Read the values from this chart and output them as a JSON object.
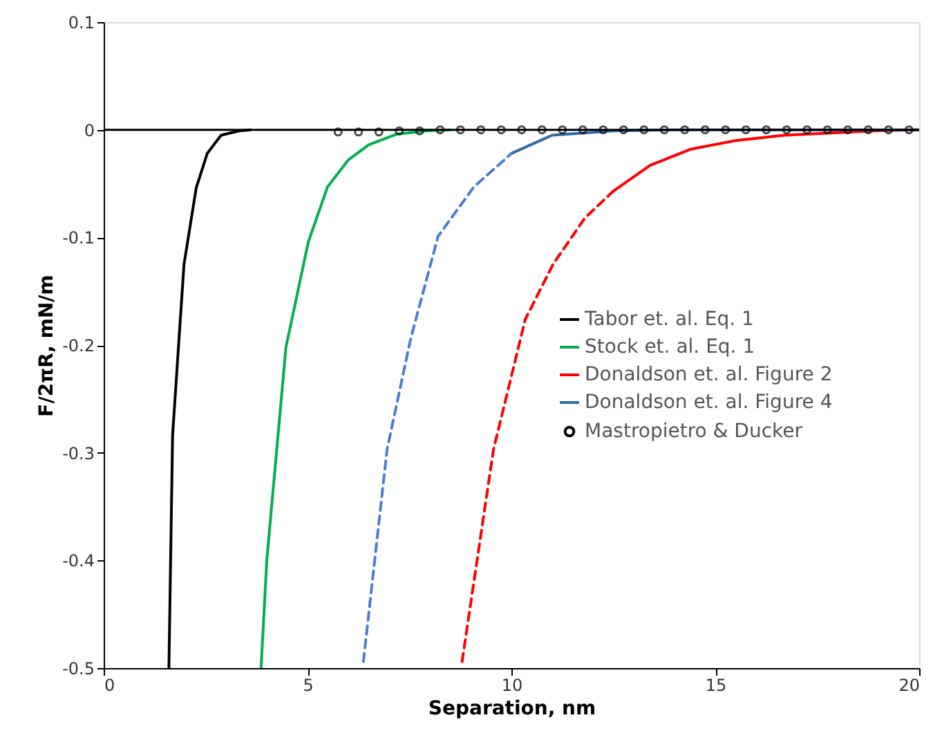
{
  "chart_data": {
    "type": "line",
    "xlabel": "Separation, nm",
    "ylabel": "F/2πR, mN/m",
    "xlim": [
      0,
      20
    ],
    "xticks": [
      0,
      5,
      10,
      15,
      20
    ],
    "ylim": [
      -0.5,
      0.1
    ],
    "yticks": [
      0.1,
      0,
      -0.1,
      -0.2,
      -0.3,
      -0.4,
      -0.5
    ],
    "grid": false,
    "legend": "right",
    "ref_lines": [
      {
        "axis": "y",
        "value": 0,
        "color": "#000000"
      }
    ],
    "series": [
      {
        "name": "Tabor et. al. Eq. 1",
        "color": "#000000",
        "line_style": "solid",
        "x": [
          1.6,
          1.69,
          1.97,
          2.27,
          2.54,
          2.88,
          3.32,
          3.6
        ],
        "values": [
          -0.5,
          -0.284,
          -0.125,
          -0.054,
          -0.022,
          -0.005,
          -0.001,
          0
        ]
      },
      {
        "name": "Stock et. al. Eq. 1",
        "color": "#00b050",
        "line_style": "solid",
        "x": [
          3.86,
          4.0,
          4.47,
          5.02,
          5.49,
          6.0,
          6.5,
          7.19,
          7.9,
          8.5
        ],
        "values": [
          -0.5,
          -0.4,
          -0.202,
          -0.104,
          -0.053,
          -0.028,
          -0.014,
          -0.004,
          -0.001,
          0
        ]
      },
      {
        "name": "Donaldson et. al. Figure 2",
        "color": "#ff0000",
        "line_style": "solid",
        "x": [
          12.5,
          13.4,
          14.4,
          15.5,
          16.7,
          18.9,
          20
        ],
        "values": [
          -0.057,
          -0.033,
          -0.018,
          -0.01,
          -0.005,
          -0.001,
          0
        ]
      },
      {
        "color": "#ff0000",
        "line_style": "dashed",
        "x": [
          8.79,
          9.56,
          10.34,
          11.02,
          11.8,
          12.5
        ],
        "values": [
          -0.494,
          -0.297,
          -0.176,
          -0.125,
          -0.082,
          -0.057
        ]
      },
      {
        "name": "Donaldson et. al. Figure 4",
        "color": "#2e6aa8",
        "line_style": "solid",
        "x": [
          10.0,
          11.0,
          12.5,
          14.0,
          20
        ],
        "values": [
          -0.022,
          -0.005,
          -0.001,
          0,
          0
        ]
      },
      {
        "color": "#4a7fd0",
        "line_style": "dashed",
        "x": [
          6.37,
          6.95,
          7.53,
          8.2,
          9.08,
          10.0
        ],
        "values": [
          -0.494,
          -0.297,
          -0.194,
          -0.099,
          -0.053,
          -0.022
        ]
      },
      {
        "name": "Mastropietro & Ducker",
        "type": "scatter",
        "marker": "circle",
        "color": "#000000",
        "x": [
          5.75,
          6.25,
          6.75,
          7.25,
          7.75,
          8.25,
          8.75,
          9.25,
          9.75,
          10.25,
          10.75,
          11.25,
          11.75,
          12.25,
          12.75,
          13.25,
          13.75,
          14.25,
          14.75,
          15.25,
          15.75,
          16.25,
          16.75,
          17.25,
          17.75,
          18.25,
          18.75,
          19.25,
          19.75
        ],
        "values": [
          -0.002,
          -0.002,
          -0.002,
          -0.001,
          -0.001,
          0,
          0,
          0,
          0,
          0,
          0,
          0,
          0,
          0,
          0,
          0,
          0,
          0,
          0,
          0,
          0,
          0,
          0,
          0,
          0,
          0,
          0,
          0,
          0
        ]
      }
    ]
  }
}
